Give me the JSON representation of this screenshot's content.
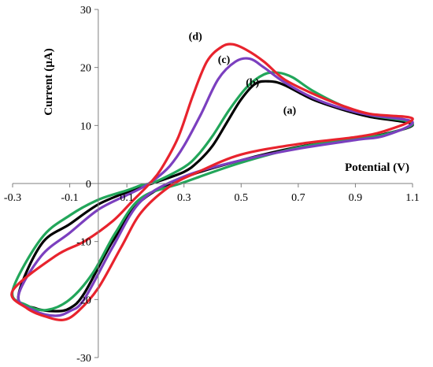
{
  "chart_data": {
    "type": "line",
    "title": "",
    "xlabel": "Potential (V)",
    "ylabel": "Current (µA)",
    "xlim": [
      -0.3,
      1.1
    ],
    "ylim": [
      -30,
      30
    ],
    "x_ticks": [
      "-0.3",
      "-0.1",
      "0.1",
      "0.3",
      "0.5",
      "0.7",
      "0.9",
      "1.1"
    ],
    "y_ticks": [
      "-30",
      "-20",
      "-10",
      "0",
      "10",
      "20",
      "30"
    ],
    "grid": false,
    "legend": "none",
    "series": [
      {
        "name": "(a)",
        "color": "#000000",
        "points": [
          [
            1.1,
            10.2
          ],
          [
            0.95,
            11.5
          ],
          [
            0.85,
            12.8
          ],
          [
            0.75,
            14.5
          ],
          [
            0.65,
            17.0
          ],
          [
            0.6,
            17.6
          ],
          [
            0.55,
            17.2
          ],
          [
            0.5,
            14.5
          ],
          [
            0.45,
            10.5
          ],
          [
            0.4,
            6.5
          ],
          [
            0.35,
            3.8
          ],
          [
            0.3,
            2.0
          ],
          [
            0.2,
            0.2
          ],
          [
            0.15,
            -0.6
          ],
          [
            0.1,
            -1.5
          ],
          [
            0.0,
            -3.6
          ],
          [
            -0.1,
            -7.0
          ],
          [
            -0.2,
            -10.5
          ],
          [
            -0.28,
            -19.5
          ],
          [
            -0.22,
            -21.5
          ],
          [
            -0.15,
            -22.0
          ],
          [
            -0.1,
            -21.5
          ],
          [
            -0.05,
            -19.0
          ],
          [
            0.05,
            -10.0
          ],
          [
            0.15,
            -3.0
          ],
          [
            0.3,
            1.0
          ],
          [
            0.5,
            4.0
          ],
          [
            0.7,
            6.3
          ],
          [
            0.9,
            7.8
          ],
          [
            1.0,
            8.5
          ],
          [
            1.1,
            10.2
          ]
        ]
      },
      {
        "name": "(b)",
        "color": "#22a65a",
        "points": [
          [
            1.1,
            10.4
          ],
          [
            0.95,
            11.8
          ],
          [
            0.85,
            13.5
          ],
          [
            0.75,
            16.0
          ],
          [
            0.68,
            18.3
          ],
          [
            0.63,
            19.1
          ],
          [
            0.58,
            18.8
          ],
          [
            0.52,
            16.6
          ],
          [
            0.46,
            12.8
          ],
          [
            0.4,
            8.2
          ],
          [
            0.35,
            5.0
          ],
          [
            0.3,
            2.8
          ],
          [
            0.2,
            0.3
          ],
          [
            0.15,
            -0.3
          ],
          [
            0.1,
            -1.2
          ],
          [
            0.0,
            -2.8
          ],
          [
            -0.1,
            -5.5
          ],
          [
            -0.2,
            -9.5
          ],
          [
            -0.3,
            -18.5
          ],
          [
            -0.25,
            -21.0
          ],
          [
            -0.18,
            -21.8
          ],
          [
            -0.1,
            -20.0
          ],
          [
            -0.02,
            -15.5
          ],
          [
            0.06,
            -8.5
          ],
          [
            0.15,
            -2.5
          ],
          [
            0.3,
            0.2
          ],
          [
            0.5,
            3.6
          ],
          [
            0.7,
            6.2
          ],
          [
            0.9,
            7.8
          ],
          [
            1.0,
            8.4
          ],
          [
            1.1,
            10.4
          ]
        ]
      },
      {
        "name": "(c)",
        "color": "#7b3fbf",
        "points": [
          [
            1.1,
            10.6
          ],
          [
            0.95,
            11.8
          ],
          [
            0.85,
            13.0
          ],
          [
            0.75,
            14.8
          ],
          [
            0.65,
            17.5
          ],
          [
            0.58,
            20.0
          ],
          [
            0.53,
            21.5
          ],
          [
            0.48,
            21.0
          ],
          [
            0.42,
            18.0
          ],
          [
            0.36,
            12.0
          ],
          [
            0.3,
            6.5
          ],
          [
            0.25,
            3.0
          ],
          [
            0.2,
            0.8
          ],
          [
            0.15,
            -0.8
          ],
          [
            0.1,
            -2.0
          ],
          [
            0.0,
            -4.5
          ],
          [
            -0.1,
            -8.5
          ],
          [
            -0.2,
            -12.5
          ],
          [
            -0.28,
            -19.5
          ],
          [
            -0.22,
            -22.0
          ],
          [
            -0.15,
            -22.8
          ],
          [
            -0.1,
            -22.0
          ],
          [
            -0.05,
            -20.0
          ],
          [
            0.05,
            -11.0
          ],
          [
            0.15,
            -3.0
          ],
          [
            0.3,
            1.2
          ],
          [
            0.5,
            4.0
          ],
          [
            0.7,
            6.0
          ],
          [
            0.9,
            7.5
          ],
          [
            1.0,
            8.2
          ],
          [
            1.1,
            10.6
          ]
        ]
      },
      {
        "name": "(d)",
        "color": "#e8232d",
        "points": [
          [
            1.1,
            11.2
          ],
          [
            0.95,
            12.0
          ],
          [
            0.85,
            13.5
          ],
          [
            0.75,
            15.5
          ],
          [
            0.65,
            18.0
          ],
          [
            0.58,
            21.0
          ],
          [
            0.52,
            23.0
          ],
          [
            0.47,
            24.0
          ],
          [
            0.43,
            23.5
          ],
          [
            0.38,
            21.0
          ],
          [
            0.33,
            15.0
          ],
          [
            0.28,
            8.0
          ],
          [
            0.22,
            2.5
          ],
          [
            0.18,
            0.0
          ],
          [
            0.12,
            -3.0
          ],
          [
            0.05,
            -6.5
          ],
          [
            -0.05,
            -10.0
          ],
          [
            -0.15,
            -12.5
          ],
          [
            -0.3,
            -18.5
          ],
          [
            -0.25,
            -21.5
          ],
          [
            -0.18,
            -23.0
          ],
          [
            -0.12,
            -23.5
          ],
          [
            -0.07,
            -22.0
          ],
          [
            0.0,
            -18.0
          ],
          [
            0.08,
            -11.0
          ],
          [
            0.15,
            -5.0
          ],
          [
            0.25,
            -0.5
          ],
          [
            0.35,
            2.0
          ],
          [
            0.5,
            5.0
          ],
          [
            0.7,
            6.8
          ],
          [
            0.9,
            8.0
          ],
          [
            1.0,
            9.0
          ],
          [
            1.1,
            11.2
          ]
        ]
      }
    ]
  },
  "labels": [
    {
      "text": "(a)",
      "x": 0.67,
      "y": 12.0
    },
    {
      "text": "(b)",
      "x": 0.54,
      "y": 16.8
    },
    {
      "text": "(c)",
      "x": 0.44,
      "y": 20.8
    },
    {
      "text": "(d)",
      "x": 0.34,
      "y": 24.8
    }
  ]
}
